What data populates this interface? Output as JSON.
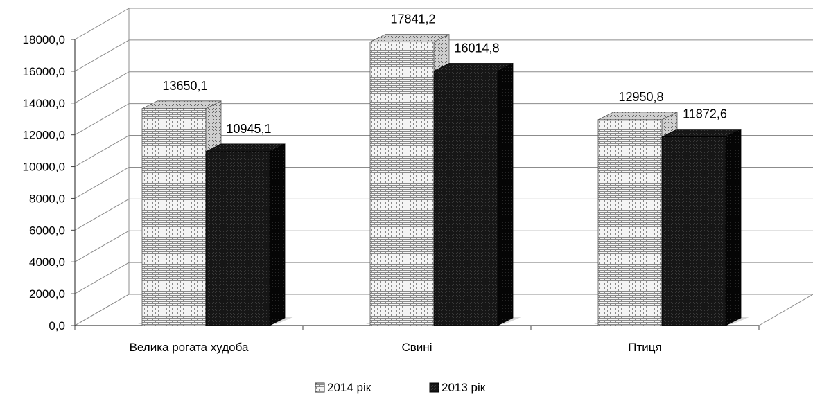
{
  "chart_data": {
    "type": "bar",
    "categories": [
      "Велика рогата худоба",
      "Свині",
      "Птиця"
    ],
    "series": [
      {
        "name": "2014 рік",
        "values": [
          13650.1,
          17841.2,
          12950.8
        ],
        "value_labels": [
          "13650,1",
          "17841,2",
          "12950,8"
        ],
        "fill": "brick-pattern-light"
      },
      {
        "name": "2013 рік",
        "values": [
          10945.1,
          16014.8,
          11872.6
        ],
        "value_labels": [
          "10945,1",
          "16014,8",
          "11872,6"
        ],
        "fill": "dark-pattern"
      }
    ],
    "ylim": [
      0,
      18000
    ],
    "yticks": [
      0,
      2000,
      4000,
      6000,
      8000,
      10000,
      12000,
      14000,
      16000,
      18000
    ],
    "ytick_labels": [
      "0,0",
      "2000,0",
      "4000,0",
      "6000,0",
      "8000,0",
      "10000,0",
      "12000,0",
      "14000,0",
      "16000,0",
      "18000,0"
    ],
    "grid": true,
    "three_d": true,
    "legend_position": "bottom",
    "title": "",
    "xlabel": "",
    "ylabel": ""
  }
}
